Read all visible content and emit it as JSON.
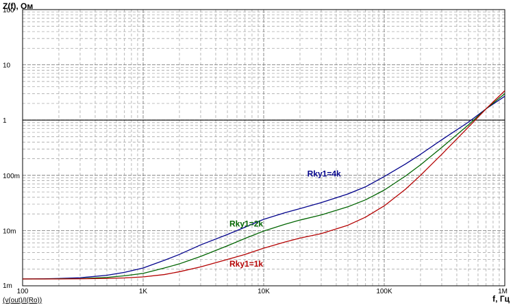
{
  "chart_data": {
    "type": "line",
    "ylabel": "Z(f), Ом",
    "xlabel": "f, Гц",
    "trace_expression": "(v(out)/I(Ro))",
    "x_scale": "log",
    "y_scale": "log",
    "xlim": [
      100,
      1000000
    ],
    "ylim": [
      0.001,
      100
    ],
    "grid": true,
    "x_ticks": [
      {
        "value": 100,
        "label": "100"
      },
      {
        "value": 1000,
        "label": "1K"
      },
      {
        "value": 10000,
        "label": "10K"
      },
      {
        "value": 100000,
        "label": "100K"
      },
      {
        "value": 1000000,
        "label": "1M"
      }
    ],
    "y_ticks": [
      {
        "value": 0.001,
        "label": "1m"
      },
      {
        "value": 0.01,
        "label": "10m"
      },
      {
        "value": 0.1,
        "label": "100m"
      },
      {
        "value": 1,
        "label": "1"
      },
      {
        "value": 10,
        "label": "10"
      },
      {
        "value": 100,
        "label": "100"
      }
    ],
    "reference_line": {
      "y": 1
    },
    "series": [
      {
        "name": "Rky1=4k",
        "color": "#00008b",
        "points": [
          [
            100,
            0.00133
          ],
          [
            150,
            0.00134
          ],
          [
            200,
            0.00136
          ],
          [
            300,
            0.0014
          ],
          [
            500,
            0.00155
          ],
          [
            700,
            0.00175
          ],
          [
            1000,
            0.0021
          ],
          [
            1500,
            0.0029
          ],
          [
            2000,
            0.0037
          ],
          [
            3000,
            0.0055
          ],
          [
            5000,
            0.0085
          ],
          [
            7000,
            0.0115
          ],
          [
            10000,
            0.016
          ],
          [
            15000,
            0.021
          ],
          [
            20000,
            0.025
          ],
          [
            30000,
            0.032
          ],
          [
            50000,
            0.046
          ],
          [
            70000,
            0.062
          ],
          [
            100000,
            0.095
          ],
          [
            150000,
            0.16
          ],
          [
            200000,
            0.24
          ],
          [
            300000,
            0.44
          ],
          [
            500000,
            0.92
          ],
          [
            700000,
            1.6
          ],
          [
            1000000,
            2.7
          ]
        ],
        "label_at": [
          23000,
          0.095
        ]
      },
      {
        "name": "Rky1=2k",
        "color": "#006400",
        "points": [
          [
            100,
            0.00133
          ],
          [
            150,
            0.00133
          ],
          [
            200,
            0.00134
          ],
          [
            300,
            0.00135
          ],
          [
            500,
            0.00142
          ],
          [
            700,
            0.00152
          ],
          [
            1000,
            0.00168
          ],
          [
            1500,
            0.0021
          ],
          [
            2000,
            0.0025
          ],
          [
            3000,
            0.0034
          ],
          [
            5000,
            0.0053
          ],
          [
            7000,
            0.0072
          ],
          [
            10000,
            0.0098
          ],
          [
            15000,
            0.013
          ],
          [
            20000,
            0.0155
          ],
          [
            30000,
            0.0192
          ],
          [
            50000,
            0.027
          ],
          [
            70000,
            0.036
          ],
          [
            100000,
            0.054
          ],
          [
            150000,
            0.097
          ],
          [
            200000,
            0.155
          ],
          [
            300000,
            0.32
          ],
          [
            500000,
            0.82
          ],
          [
            700000,
            1.6
          ],
          [
            1000000,
            3.0
          ]
        ],
        "label_at": [
          5200,
          0.0118
        ]
      },
      {
        "name": "Rky1=1k",
        "color": "#b40000",
        "points": [
          [
            100,
            0.00133
          ],
          [
            150,
            0.00133
          ],
          [
            200,
            0.00133
          ],
          [
            300,
            0.00134
          ],
          [
            500,
            0.00136
          ],
          [
            700,
            0.00139
          ],
          [
            1000,
            0.00145
          ],
          [
            1500,
            0.0016
          ],
          [
            2000,
            0.0018
          ],
          [
            3000,
            0.0022
          ],
          [
            5000,
            0.003
          ],
          [
            7000,
            0.0037
          ],
          [
            10000,
            0.0048
          ],
          [
            15000,
            0.0062
          ],
          [
            20000,
            0.0073
          ],
          [
            30000,
            0.0088
          ],
          [
            50000,
            0.0125
          ],
          [
            70000,
            0.0175
          ],
          [
            100000,
            0.028
          ],
          [
            150000,
            0.056
          ],
          [
            200000,
            0.1
          ],
          [
            300000,
            0.24
          ],
          [
            500000,
            0.75
          ],
          [
            700000,
            1.6
          ],
          [
            1000000,
            3.4
          ]
        ],
        "label_at": [
          5200,
          0.00222
        ]
      }
    ]
  }
}
